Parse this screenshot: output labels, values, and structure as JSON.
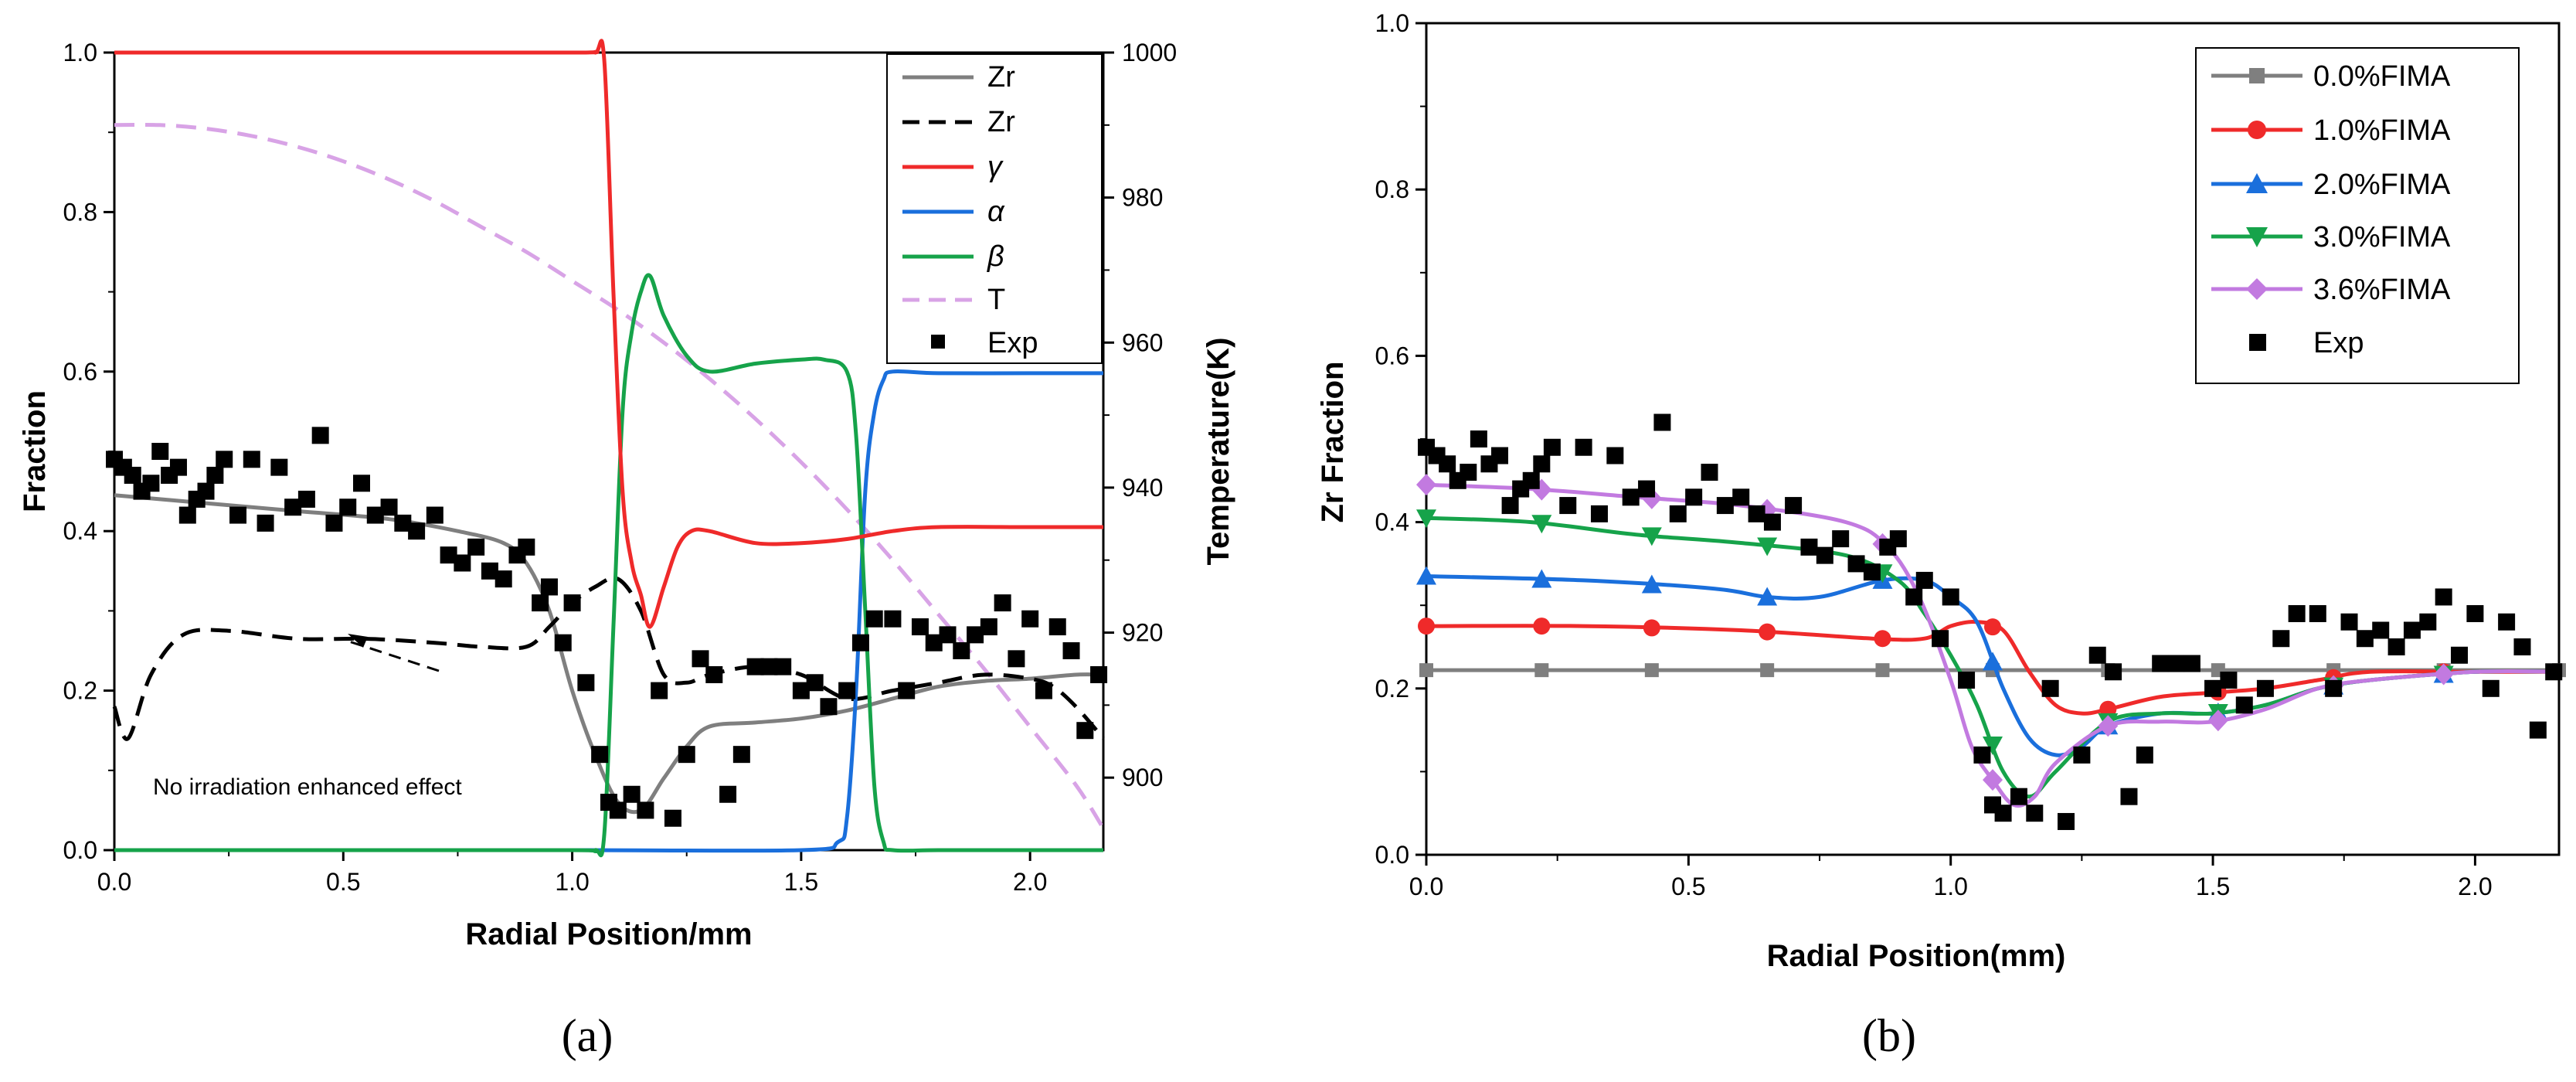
{
  "chart_data": [
    {
      "type": "line",
      "panel_label": "(a)",
      "xlabel": "Radial Position/mm",
      "ylabel": "Fraction",
      "y2label": "Temperature(K)",
      "xlim": [
        0,
        2.16
      ],
      "ylim": [
        0,
        1.0
      ],
      "y2lim": [
        890,
        1000
      ],
      "xticks": [
        0.0,
        0.5,
        1.0,
        1.5,
        2.0
      ],
      "xtick_labels": [
        "0.0",
        "0.5",
        "1.0",
        "1.5",
        "2.0"
      ],
      "yticks": [
        0.0,
        0.2,
        0.4,
        0.6,
        0.8,
        1.0
      ],
      "ytick_labels": [
        "0.0",
        "0.2",
        "0.4",
        "0.6",
        "0.8",
        "1.0"
      ],
      "y2ticks": [
        900,
        920,
        940,
        960,
        980,
        1000
      ],
      "y2tick_labels": [
        "900",
        "920",
        "940",
        "960",
        "980",
        "1000"
      ],
      "legend_position": "top-right",
      "annotation": "No irradiation enhanced effect",
      "series": [
        {
          "name": "Zr",
          "color": "#7f7f7f",
          "style": "solid",
          "axis": "left",
          "x": [
            0,
            0.2,
            0.4,
            0.6,
            0.75,
            0.85,
            0.9,
            0.95,
            1.0,
            1.05,
            1.1,
            1.15,
            1.2,
            1.25,
            1.3,
            1.4,
            1.5,
            1.6,
            1.7,
            1.8,
            1.9,
            2.0,
            2.1,
            2.16
          ],
          "y": [
            0.445,
            0.435,
            0.425,
            0.415,
            0.4,
            0.385,
            0.36,
            0.3,
            0.2,
            0.12,
            0.06,
            0.05,
            0.09,
            0.13,
            0.155,
            0.16,
            0.165,
            0.175,
            0.19,
            0.205,
            0.212,
            0.215,
            0.22,
            0.22
          ]
        },
        {
          "name": "Zr",
          "color": "#000000",
          "style": "dashed",
          "axis": "left",
          "x": [
            0,
            0.03,
            0.08,
            0.15,
            0.25,
            0.4,
            0.55,
            0.7,
            0.8,
            0.9,
            0.95,
            1.0,
            1.05,
            1.1,
            1.15,
            1.2,
            1.25,
            1.3,
            1.4,
            1.5,
            1.6,
            1.7,
            1.8,
            1.9,
            2.0,
            2.05,
            2.1,
            2.16
          ],
          "y": [
            0.18,
            0.14,
            0.22,
            0.27,
            0.275,
            0.265,
            0.265,
            0.26,
            0.255,
            0.255,
            0.28,
            0.31,
            0.33,
            0.34,
            0.3,
            0.22,
            0.21,
            0.22,
            0.23,
            0.22,
            0.19,
            0.2,
            0.21,
            0.22,
            0.215,
            0.205,
            0.18,
            0.14
          ]
        },
        {
          "name": "γ",
          "color": "#ef2a2a",
          "style": "solid",
          "axis": "left",
          "x": [
            0,
            0.5,
            1.0,
            1.05,
            1.07,
            1.09,
            1.11,
            1.13,
            1.15,
            1.17,
            1.2,
            1.23,
            1.26,
            1.3,
            1.4,
            1.5,
            1.6,
            1.7,
            1.8,
            2.0,
            2.16
          ],
          "y": [
            1.0,
            1.0,
            1.0,
            1.0,
            0.99,
            0.7,
            0.45,
            0.36,
            0.32,
            0.28,
            0.33,
            0.38,
            0.4,
            0.4,
            0.385,
            0.385,
            0.39,
            0.4,
            0.405,
            0.405,
            0.405
          ]
        },
        {
          "name": "α",
          "color": "#1a6fdc",
          "style": "solid",
          "axis": "left",
          "x": [
            0,
            0.5,
            1.0,
            1.5,
            1.58,
            1.6,
            1.62,
            1.64,
            1.66,
            1.68,
            1.7,
            1.8,
            2.0,
            2.16
          ],
          "y": [
            0,
            0,
            0,
            0,
            0.01,
            0.04,
            0.2,
            0.45,
            0.55,
            0.59,
            0.6,
            0.598,
            0.598,
            0.598
          ]
        },
        {
          "name": "β",
          "color": "#16a34a",
          "style": "solid",
          "axis": "left",
          "x": [
            0,
            0.5,
            1.0,
            1.05,
            1.07,
            1.09,
            1.11,
            1.13,
            1.15,
            1.17,
            1.2,
            1.25,
            1.3,
            1.4,
            1.5,
            1.55,
            1.6,
            1.62,
            1.64,
            1.66,
            1.68,
            1.7,
            1.8,
            2.0,
            2.16
          ],
          "y": [
            0,
            0,
            0,
            0,
            0.02,
            0.28,
            0.55,
            0.65,
            0.7,
            0.72,
            0.67,
            0.62,
            0.6,
            0.61,
            0.615,
            0.615,
            0.6,
            0.52,
            0.3,
            0.08,
            0.01,
            0,
            0,
            0,
            0
          ]
        },
        {
          "name": "T",
          "color": "#d8a3e6",
          "style": "dashed",
          "axis": "right",
          "x": [
            0,
            0.1,
            0.2,
            0.3,
            0.4,
            0.5,
            0.6,
            0.7,
            0.8,
            0.9,
            1.0,
            1.1,
            1.2,
            1.3,
            1.4,
            1.5,
            1.6,
            1.7,
            1.8,
            1.9,
            2.0,
            2.1,
            2.16
          ],
          "y": [
            990,
            990,
            989.5,
            988.5,
            987,
            985,
            982.5,
            979.5,
            976,
            972.5,
            968.5,
            964.5,
            960,
            955,
            949.5,
            943.5,
            937,
            930,
            922.5,
            915,
            907,
            899,
            893
          ]
        },
        {
          "name": "Exp",
          "color": "#000000",
          "style": "marker",
          "axis": "left",
          "x": [
            0,
            0.02,
            0.04,
            0.06,
            0.08,
            0.1,
            0.12,
            0.14,
            0.16,
            0.18,
            0.2,
            0.22,
            0.24,
            0.27,
            0.3,
            0.33,
            0.36,
            0.39,
            0.42,
            0.45,
            0.48,
            0.51,
            0.54,
            0.57,
            0.6,
            0.63,
            0.66,
            0.7,
            0.73,
            0.76,
            0.79,
            0.82,
            0.85,
            0.88,
            0.9,
            0.93,
            0.95,
            0.98,
            1.0,
            1.03,
            1.06,
            1.08,
            1.1,
            1.13,
            1.16,
            1.19,
            1.22,
            1.25,
            1.28,
            1.31,
            1.34,
            1.37,
            1.4,
            1.43,
            1.46,
            1.5,
            1.53,
            1.56,
            1.6,
            1.63,
            1.66,
            1.7,
            1.73,
            1.76,
            1.79,
            1.82,
            1.85,
            1.88,
            1.91,
            1.94,
            1.97,
            2.0,
            2.03,
            2.06,
            2.09,
            2.12,
            2.15
          ],
          "y": [
            0.49,
            0.48,
            0.47,
            0.45,
            0.46,
            0.5,
            0.47,
            0.48,
            0.42,
            0.44,
            0.45,
            0.47,
            0.49,
            0.42,
            0.49,
            0.41,
            0.48,
            0.43,
            0.44,
            0.52,
            0.41,
            0.43,
            0.46,
            0.42,
            0.43,
            0.41,
            0.4,
            0.42,
            0.37,
            0.36,
            0.38,
            0.35,
            0.34,
            0.37,
            0.38,
            0.31,
            0.33,
            0.26,
            0.31,
            0.21,
            0.12,
            0.06,
            0.05,
            0.07,
            0.05,
            0.2,
            0.04,
            0.12,
            0.24,
            0.22,
            0.07,
            0.12,
            0.23,
            0.23,
            0.23,
            0.2,
            0.21,
            0.18,
            0.2,
            0.26,
            0.29,
            0.29,
            0.2,
            0.28,
            0.26,
            0.27,
            0.25,
            0.27,
            0.28,
            0.31,
            0.24,
            0.29,
            0.2,
            0.28,
            0.25,
            0.15,
            0.22
          ]
        }
      ]
    },
    {
      "type": "line",
      "panel_label": "(b)",
      "xlabel": "Radial Position(mm)",
      "ylabel": "Zr Fraction",
      "xlim": [
        0,
        2.16
      ],
      "ylim": [
        0,
        1.0
      ],
      "xticks": [
        0.0,
        0.5,
        1.0,
        1.5,
        2.0
      ],
      "xtick_labels": [
        "0.0",
        "0.5",
        "1.0",
        "1.5",
        "2.0"
      ],
      "yticks": [
        0.0,
        0.2,
        0.4,
        0.6,
        0.8,
        1.0
      ],
      "ytick_labels": [
        "0.0",
        "0.2",
        "0.4",
        "0.6",
        "0.8",
        "1.0"
      ],
      "legend_position": "top-right",
      "series": [
        {
          "name": "0.0%FIMA",
          "color": "#7f7f7f",
          "marker": "square",
          "x": [
            0,
            0.2,
            0.4,
            0.6,
            0.8,
            1.0,
            1.2,
            1.4,
            1.6,
            1.8,
            2.0,
            2.16
          ],
          "y": [
            0.222,
            0.222,
            0.222,
            0.222,
            0.222,
            0.222,
            0.222,
            0.222,
            0.222,
            0.222,
            0.222,
            0.222
          ],
          "markers_x": [
            0,
            0.22,
            0.43,
            0.65,
            0.87,
            1.08,
            1.3,
            1.51,
            1.73,
            1.94,
            2.16
          ]
        },
        {
          "name": "1.0%FIMA",
          "color": "#ef2a2a",
          "marker": "circle",
          "x": [
            0,
            0.3,
            0.6,
            0.85,
            0.95,
            1.0,
            1.05,
            1.1,
            1.15,
            1.2,
            1.25,
            1.3,
            1.4,
            1.5,
            1.6,
            1.7,
            1.8,
            2.0,
            2.16
          ],
          "y": [
            0.275,
            0.275,
            0.27,
            0.26,
            0.26,
            0.275,
            0.28,
            0.27,
            0.22,
            0.18,
            0.17,
            0.175,
            0.19,
            0.195,
            0.2,
            0.21,
            0.22,
            0.22,
            0.22
          ],
          "markers_x": [
            0,
            0.22,
            0.43,
            0.65,
            0.87,
            1.08,
            1.3,
            1.51,
            1.73,
            1.94
          ]
        },
        {
          "name": "2.0%FIMA",
          "color": "#1a6fdc",
          "marker": "triangle",
          "x": [
            0,
            0.3,
            0.55,
            0.65,
            0.75,
            0.87,
            0.95,
            1.0,
            1.05,
            1.1,
            1.15,
            1.2,
            1.25,
            1.3,
            1.4,
            1.5,
            1.6,
            1.7,
            1.8,
            2.0,
            2.16
          ],
          "y": [
            0.335,
            0.33,
            0.32,
            0.31,
            0.31,
            0.33,
            0.33,
            0.31,
            0.28,
            0.2,
            0.14,
            0.12,
            0.13,
            0.155,
            0.17,
            0.17,
            0.18,
            0.2,
            0.21,
            0.22,
            0.22
          ],
          "markers_x": [
            0,
            0.22,
            0.43,
            0.65,
            0.87,
            1.08,
            1.3,
            1.51,
            1.73,
            1.94
          ]
        },
        {
          "name": "3.0%FIMA",
          "color": "#16a34a",
          "marker": "triangle-down",
          "x": [
            0,
            0.2,
            0.4,
            0.6,
            0.8,
            0.9,
            0.95,
            1.0,
            1.05,
            1.1,
            1.15,
            1.2,
            1.3,
            1.4,
            1.5,
            1.6,
            1.7,
            1.8,
            2.0,
            2.16
          ],
          "y": [
            0.405,
            0.4,
            0.385,
            0.375,
            0.36,
            0.33,
            0.29,
            0.24,
            0.18,
            0.1,
            0.07,
            0.1,
            0.16,
            0.17,
            0.17,
            0.18,
            0.2,
            0.21,
            0.22,
            0.22
          ],
          "markers_x": [
            0,
            0.22,
            0.43,
            0.65,
            0.87,
            1.08,
            1.3,
            1.51,
            1.73,
            1.94
          ]
        },
        {
          "name": "3.6%FIMA",
          "color": "#c27ae0",
          "marker": "diamond",
          "x": [
            0,
            0.2,
            0.4,
            0.6,
            0.8,
            0.88,
            0.94,
            1.0,
            1.04,
            1.08,
            1.12,
            1.16,
            1.2,
            1.3,
            1.4,
            1.5,
            1.6,
            1.7,
            1.8,
            2.0,
            2.16
          ],
          "y": [
            0.445,
            0.44,
            0.43,
            0.42,
            0.4,
            0.37,
            0.31,
            0.21,
            0.13,
            0.09,
            0.06,
            0.07,
            0.11,
            0.155,
            0.16,
            0.16,
            0.175,
            0.2,
            0.21,
            0.22,
            0.22
          ],
          "markers_x": [
            0,
            0.22,
            0.43,
            0.65,
            0.87,
            1.08,
            1.3,
            1.51,
            1.73,
            1.94
          ]
        },
        {
          "name": "Exp",
          "color": "#000000",
          "marker": "square-filled",
          "x": [
            0,
            0.02,
            0.04,
            0.06,
            0.08,
            0.1,
            0.12,
            0.14,
            0.16,
            0.18,
            0.2,
            0.22,
            0.24,
            0.27,
            0.3,
            0.33,
            0.36,
            0.39,
            0.42,
            0.45,
            0.48,
            0.51,
            0.54,
            0.57,
            0.6,
            0.63,
            0.66,
            0.7,
            0.73,
            0.76,
            0.79,
            0.82,
            0.85,
            0.88,
            0.9,
            0.93,
            0.95,
            0.98,
            1.0,
            1.03,
            1.06,
            1.08,
            1.1,
            1.13,
            1.16,
            1.19,
            1.22,
            1.25,
            1.28,
            1.31,
            1.34,
            1.37,
            1.4,
            1.43,
            1.46,
            1.5,
            1.53,
            1.56,
            1.6,
            1.63,
            1.66,
            1.7,
            1.73,
            1.76,
            1.79,
            1.82,
            1.85,
            1.88,
            1.91,
            1.94,
            1.97,
            2.0,
            2.03,
            2.06,
            2.09,
            2.12,
            2.15
          ],
          "y": [
            0.49,
            0.48,
            0.47,
            0.45,
            0.46,
            0.5,
            0.47,
            0.48,
            0.42,
            0.44,
            0.45,
            0.47,
            0.49,
            0.42,
            0.49,
            0.41,
            0.48,
            0.43,
            0.44,
            0.52,
            0.41,
            0.43,
            0.46,
            0.42,
            0.43,
            0.41,
            0.4,
            0.42,
            0.37,
            0.36,
            0.38,
            0.35,
            0.34,
            0.37,
            0.38,
            0.31,
            0.33,
            0.26,
            0.31,
            0.21,
            0.12,
            0.06,
            0.05,
            0.07,
            0.05,
            0.2,
            0.04,
            0.12,
            0.24,
            0.22,
            0.07,
            0.12,
            0.23,
            0.23,
            0.23,
            0.2,
            0.21,
            0.18,
            0.2,
            0.26,
            0.29,
            0.29,
            0.2,
            0.28,
            0.26,
            0.27,
            0.25,
            0.27,
            0.28,
            0.31,
            0.24,
            0.29,
            0.2,
            0.28,
            0.25,
            0.15,
            0.22
          ]
        }
      ]
    }
  ]
}
